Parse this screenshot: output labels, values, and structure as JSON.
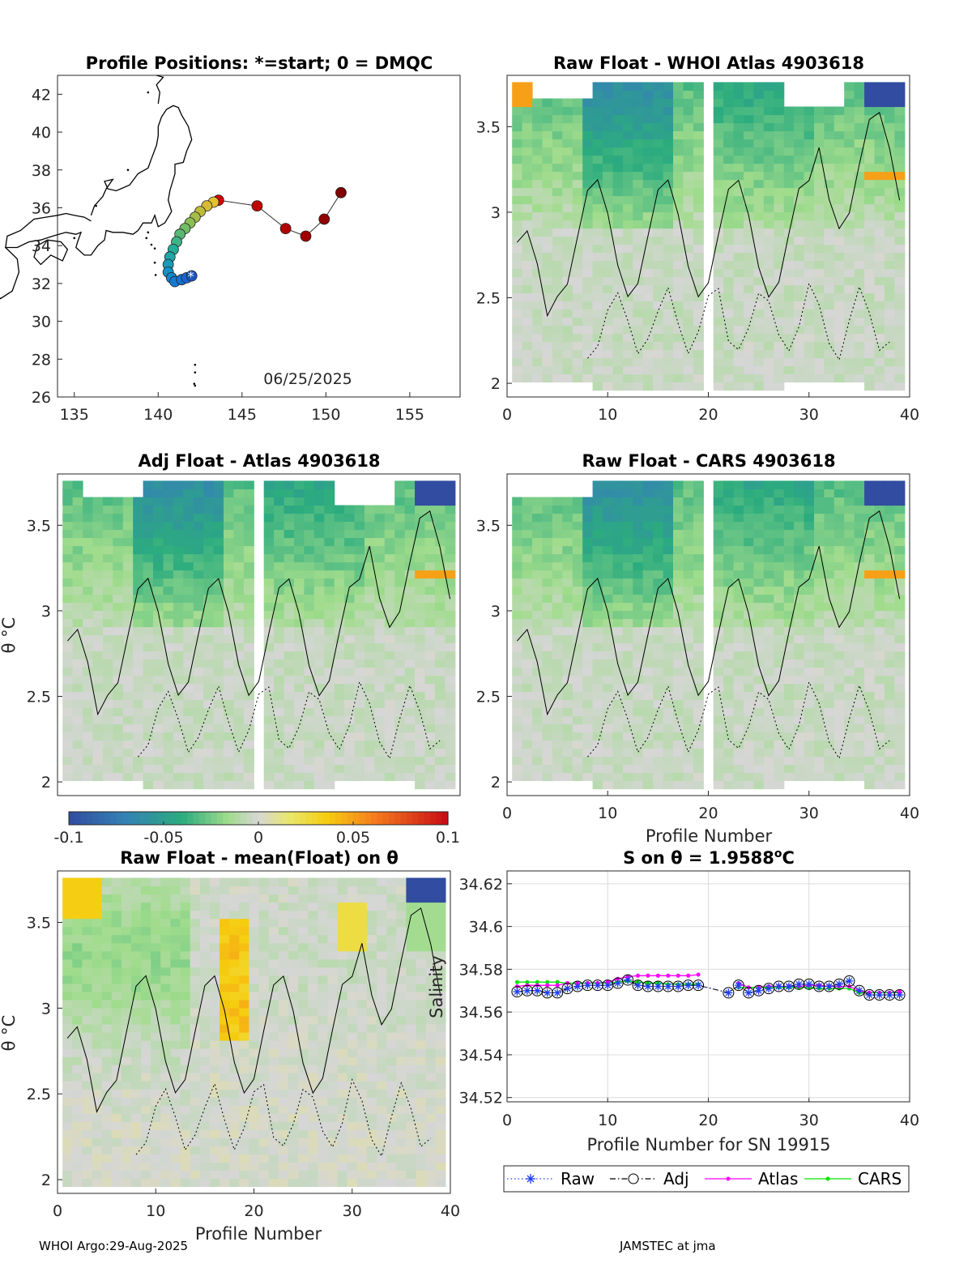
{
  "footer": {
    "left": "WHOI Argo:29-Aug-2025",
    "right": "JAMSTEC at jma"
  },
  "chart_data": [
    {
      "panel": "map",
      "type": "scatter",
      "title": "Profile Positions: *=start; 0 = DMQC",
      "xlim": [
        134,
        158
      ],
      "ylim": [
        26,
        43
      ],
      "xticks": [
        "135",
        "140",
        "145",
        "150",
        "155"
      ],
      "yticks": [
        "26",
        "28",
        "30",
        "32",
        "34",
        "36",
        "38",
        "40",
        "42"
      ],
      "date_label": "06/25/2025",
      "track": {
        "lon": [
          142.0,
          141.7,
          141.4,
          141.0,
          140.8,
          140.6,
          140.6,
          140.7,
          140.9,
          141.1,
          141.3,
          141.6,
          141.9,
          142.2,
          142.5,
          142.9,
          143.3,
          143.6,
          145.9,
          147.6,
          148.8,
          149.9,
          150.9
        ],
        "lat": [
          32.4,
          32.3,
          32.2,
          32.1,
          32.3,
          32.6,
          33.0,
          33.4,
          33.8,
          34.2,
          34.6,
          34.9,
          35.2,
          35.5,
          35.8,
          36.1,
          36.3,
          36.4,
          36.1,
          34.9,
          34.5,
          35.4,
          36.8
        ]
      }
    },
    {
      "panel": "raw_minus_whoi_atlas",
      "type": "heatmap",
      "title": "Raw Float - WHOI Atlas  4903618",
      "xlim": [
        0,
        40
      ],
      "ylim": [
        1.92,
        3.8
      ],
      "xticks": [
        "0",
        "10",
        "20",
        "30",
        "40"
      ],
      "yticks": [
        "2",
        "2.5",
        "3",
        "3.5"
      ]
    },
    {
      "panel": "adj_minus_atlas",
      "type": "heatmap",
      "title": "Adj Float - Atlas  4903618",
      "ylabel": "θ °C",
      "xlim": [
        0,
        40
      ],
      "ylim": [
        1.92,
        3.8
      ],
      "yticks": [
        "2",
        "2.5",
        "3",
        "3.5"
      ]
    },
    {
      "panel": "raw_minus_cars",
      "type": "heatmap",
      "title": "Raw Float - CARS  4903618",
      "xlabel": "Profile Number",
      "xlim": [
        0,
        40
      ],
      "ylim": [
        1.92,
        3.8
      ],
      "xticks": [
        "0",
        "10",
        "20",
        "30",
        "40"
      ],
      "yticks": [
        "2",
        "2.5",
        "3",
        "3.5"
      ]
    },
    {
      "panel": "colorbar",
      "type": "colorbar",
      "range": [
        -0.1,
        0.1
      ],
      "ticks": [
        "-0.1",
        "-0.05",
        "0",
        "0.05",
        "0.1"
      ]
    },
    {
      "panel": "raw_minus_mean",
      "type": "heatmap",
      "title": "Raw Float - mean(Float) on θ",
      "ylabel": "θ °C",
      "xlabel": "Profile Number",
      "xlim": [
        0,
        40
      ],
      "ylim": [
        1.92,
        3.8
      ],
      "xticks": [
        "0",
        "10",
        "20",
        "30",
        "40"
      ],
      "yticks": [
        "2",
        "2.5",
        "3",
        "3.5"
      ]
    },
    {
      "panel": "salinity_on_theta",
      "type": "line",
      "title": "S on θ = 1.9588°C",
      "title_prefix": "S on θ = 1.9588",
      "title_sup": "o",
      "title_suffix": "C",
      "xlabel": "Profile Number for SN 19915",
      "ylabel": "Salinity",
      "xlim": [
        0,
        40
      ],
      "ylim": [
        34.518,
        34.626
      ],
      "xticks": [
        "0",
        "10",
        "20",
        "30",
        "40"
      ],
      "yticks": [
        "34.52",
        "34.54",
        "34.56",
        "34.58",
        "34.6",
        "34.62"
      ],
      "x": [
        1,
        2,
        3,
        4,
        5,
        6,
        7,
        8,
        9,
        10,
        11,
        12,
        13,
        14,
        15,
        16,
        17,
        18,
        19,
        22,
        23,
        24,
        25,
        26,
        27,
        28,
        29,
        30,
        31,
        32,
        33,
        34,
        35,
        36,
        37,
        38,
        39
      ],
      "series": [
        {
          "name": "Raw",
          "color": "#1f3ff0",
          "values": [
            34.5695,
            34.57,
            34.57,
            34.569,
            34.569,
            34.571,
            34.572,
            34.5725,
            34.5725,
            34.5725,
            34.5735,
            34.575,
            34.5725,
            34.572,
            34.572,
            34.572,
            34.572,
            34.5725,
            34.5725,
            34.569,
            34.5725,
            34.569,
            34.57,
            34.571,
            34.572,
            34.572,
            34.573,
            34.573,
            34.572,
            34.572,
            34.573,
            34.5745,
            34.57,
            34.568,
            34.568,
            34.568,
            34.568
          ]
        },
        {
          "name": "Adj",
          "color": "#000000",
          "values": [
            34.5695,
            34.57,
            34.57,
            34.569,
            34.569,
            34.571,
            34.572,
            34.5725,
            34.5725,
            34.5725,
            34.5735,
            34.575,
            34.5725,
            34.572,
            34.572,
            34.572,
            34.572,
            34.5725,
            34.5725,
            34.569,
            34.5725,
            34.569,
            34.57,
            34.571,
            34.572,
            34.572,
            34.573,
            34.573,
            34.572,
            34.572,
            34.573,
            34.5745,
            34.57,
            34.568,
            34.568,
            34.568,
            34.568
          ]
        },
        {
          "name": "Atlas",
          "color": "#ff00ff",
          "values": [
            34.572,
            34.5725,
            34.5725,
            34.5725,
            34.5725,
            34.5735,
            34.5735,
            34.5735,
            34.5735,
            34.574,
            34.5755,
            34.5765,
            34.577,
            34.577,
            34.577,
            34.577,
            34.577,
            34.577,
            34.5775,
            null,
            34.5735,
            34.5715,
            34.5715,
            34.572,
            34.572,
            34.572,
            34.572,
            34.5725,
            34.5725,
            34.572,
            34.572,
            34.572,
            34.57,
            34.569,
            34.569,
            34.569,
            34.5695
          ]
        },
        {
          "name": "CARS",
          "color": "#00e600",
          "values": [
            34.574,
            34.574,
            34.574,
            34.574,
            34.574,
            34.5735,
            34.5735,
            34.5735,
            34.5735,
            34.5735,
            34.574,
            34.5745,
            34.574,
            34.5735,
            34.5735,
            34.573,
            34.573,
            34.573,
            34.573,
            null,
            34.5715,
            34.5715,
            34.5715,
            34.5715,
            34.5715,
            34.5715,
            34.5715,
            34.5715,
            34.571,
            34.571,
            34.571,
            34.571,
            34.569,
            34.569,
            34.569,
            34.569,
            34.569
          ]
        }
      ],
      "legend": [
        "Raw",
        "Adj",
        "Atlas",
        "CARS"
      ]
    }
  ]
}
